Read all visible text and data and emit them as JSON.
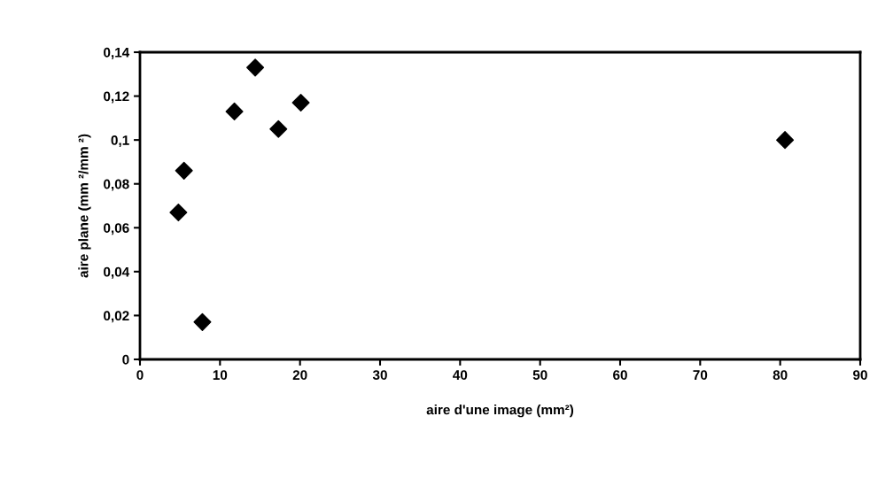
{
  "chart_data": {
    "type": "scatter",
    "xlabel": "aire d'une image (mm²)",
    "ylabel": "aire plane (mm ²/mm ²)",
    "x": [
      4.8,
      5.5,
      7.8,
      11.8,
      14.4,
      17.3,
      20.1,
      80.6
    ],
    "values": [
      0.067,
      0.086,
      0.017,
      0.113,
      0.133,
      0.105,
      0.117,
      0.1
    ],
    "color": "#000000",
    "marker": "diamond",
    "xlim": [
      0,
      90
    ],
    "xticks": [
      0,
      10,
      20,
      30,
      40,
      50,
      60,
      70,
      80,
      90
    ],
    "ylim": [
      0,
      0.14
    ],
    "yticks": [
      {
        "value": 0,
        "label": "0"
      },
      {
        "value": 0.02,
        "label": "0,02"
      },
      {
        "value": 0.04,
        "label": "0,04"
      },
      {
        "value": 0.06,
        "label": "0,06"
      },
      {
        "value": 0.08,
        "label": "0,08"
      },
      {
        "value": 0.1,
        "label": "0,1"
      },
      {
        "value": 0.12,
        "label": "0,12"
      },
      {
        "value": 0.14,
        "label": "0,14"
      }
    ],
    "grid": false,
    "legend": false
  }
}
